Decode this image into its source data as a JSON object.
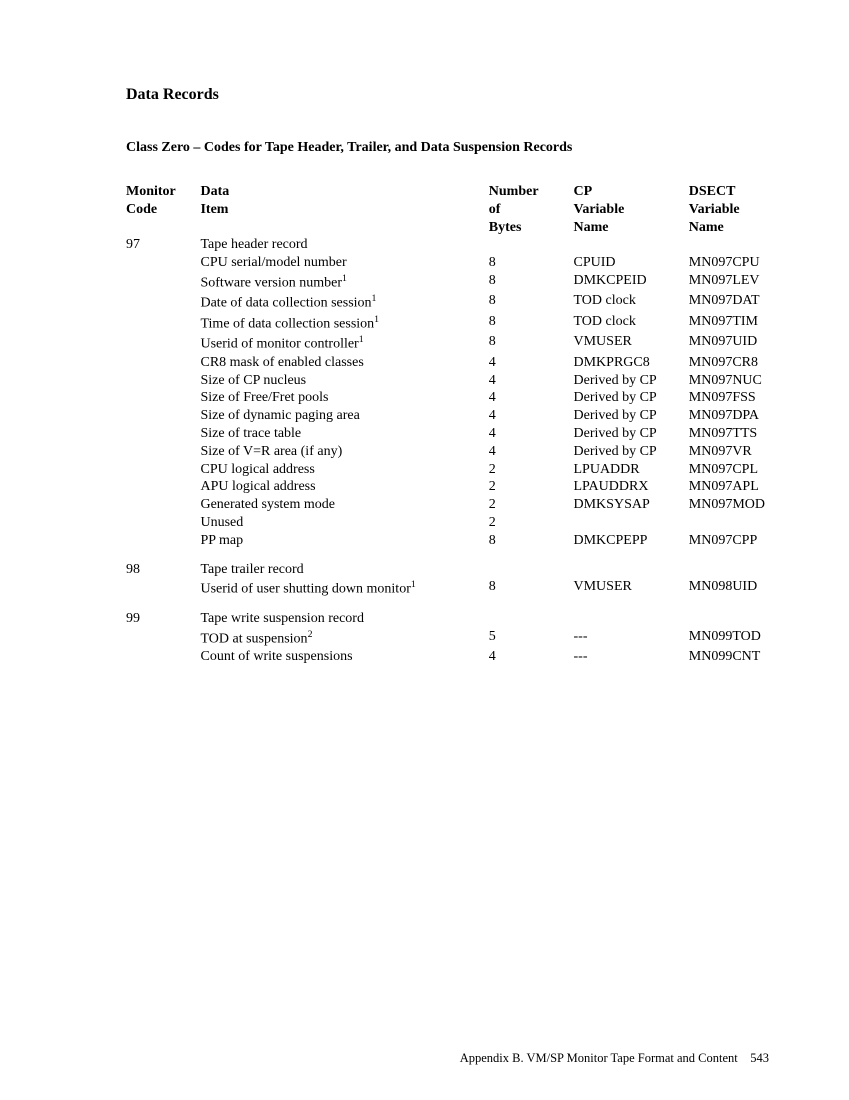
{
  "section_title": "Data Records",
  "subsection_title": "Class Zero – Codes for Tape Header, Trailer, and Data Suspension Records",
  "headers_line1": {
    "code": "Monitor",
    "item": "Data",
    "bytes": "Number",
    "cp": "CP",
    "dsect": "DSECT"
  },
  "headers_line2": {
    "code": "Code",
    "item": "Item",
    "bytes": "of",
    "cp": "Variable",
    "dsect": "Variable"
  },
  "headers_line3": {
    "code": "",
    "item": "",
    "bytes": "Bytes",
    "cp": "Name",
    "dsect": "Name"
  },
  "groups": [
    {
      "code": "97",
      "rows": [
        {
          "item": "Tape header record",
          "sup": "",
          "bytes": "",
          "cp": "",
          "dsect": ""
        },
        {
          "item": "CPU serial/model number",
          "sup": "",
          "bytes": "8",
          "cp": "CPUID",
          "dsect": "MN097CPU"
        },
        {
          "item": "Software version number",
          "sup": "1",
          "bytes": "8",
          "cp": "DMKCPEID",
          "dsect": "MN097LEV"
        },
        {
          "item": "Date of data collection session",
          "sup": "1",
          "bytes": "8",
          "cp": "TOD clock",
          "dsect": "MN097DAT"
        },
        {
          "item": "Time of data collection session",
          "sup": "1",
          "bytes": "8",
          "cp": "TOD clock",
          "dsect": "MN097TIM"
        },
        {
          "item": "Userid of monitor controller",
          "sup": "1",
          "bytes": "8",
          "cp": "VMUSER",
          "dsect": "MN097UID"
        },
        {
          "item": "CR8 mask of enabled classes",
          "sup": "",
          "bytes": "4",
          "cp": "DMKPRGC8",
          "dsect": "MN097CR8"
        },
        {
          "item": "Size of CP nucleus",
          "sup": "",
          "bytes": "4",
          "cp": "Derived by CP",
          "dsect": "MN097NUC"
        },
        {
          "item": "Size of Free/Fret pools",
          "sup": "",
          "bytes": "4",
          "cp": "Derived by CP",
          "dsect": "MN097FSS"
        },
        {
          "item": "Size of dynamic paging area",
          "sup": "",
          "bytes": "4",
          "cp": "Derived by CP",
          "dsect": "MN097DPA"
        },
        {
          "item": "Size of trace table",
          "sup": "",
          "bytes": "4",
          "cp": "Derived by CP",
          "dsect": "MN097TTS"
        },
        {
          "item": "Size of V=R area (if any)",
          "sup": "",
          "bytes": "4",
          "cp": "Derived by CP",
          "dsect": "MN097VR"
        },
        {
          "item": "CPU logical address",
          "sup": "",
          "bytes": "2",
          "cp": "LPUADDR",
          "dsect": "MN097CPL"
        },
        {
          "item": "APU logical address",
          "sup": "",
          "bytes": "2",
          "cp": "LPAUDDRX",
          "dsect": "MN097APL"
        },
        {
          "item": "Generated system mode",
          "sup": "",
          "bytes": "2",
          "cp": "DMKSYSAP",
          "dsect": "MN097MOD"
        },
        {
          "item": "Unused",
          "sup": "",
          "bytes": "2",
          "cp": "",
          "dsect": ""
        },
        {
          "item": "PP map",
          "sup": "",
          "bytes": "8",
          "cp": "DMKCPEPP",
          "dsect": "MN097CPP"
        }
      ]
    },
    {
      "code": "98",
      "rows": [
        {
          "item": "Tape trailer record",
          "sup": "",
          "bytes": "",
          "cp": "",
          "dsect": ""
        },
        {
          "item": "Userid of user shutting down monitor",
          "sup": "1",
          "bytes": "8",
          "cp": "VMUSER",
          "dsect": "MN098UID"
        }
      ]
    },
    {
      "code": "99",
      "rows": [
        {
          "item": "Tape write suspension record",
          "sup": "",
          "bytes": "",
          "cp": "",
          "dsect": ""
        },
        {
          "item": "TOD at suspension",
          "sup": "2",
          "bytes": "5",
          "cp": "---",
          "dsect": "MN099TOD"
        },
        {
          "item": "Count of write suspensions",
          "sup": "",
          "bytes": "4",
          "cp": "---",
          "dsect": "MN099CNT"
        }
      ]
    }
  ],
  "footer_text": "Appendix B.  VM/SP Monitor Tape Format and Content",
  "footer_page": "543"
}
